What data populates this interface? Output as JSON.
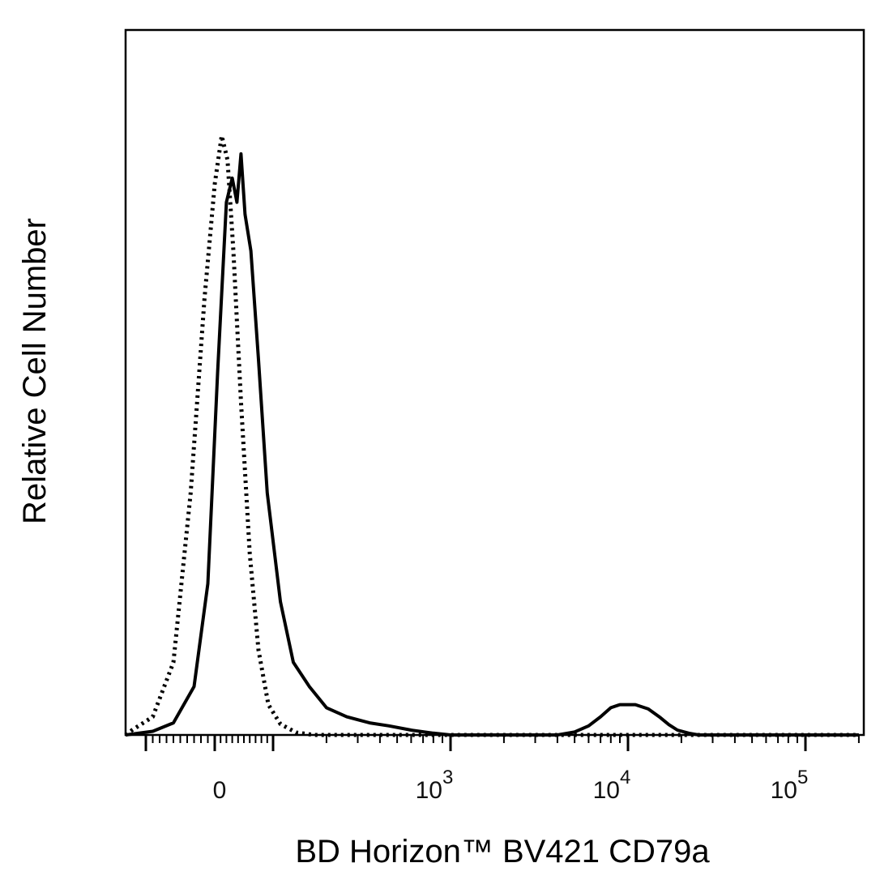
{
  "chart_data": {
    "type": "line",
    "xlabel": "BD Horizon™ BV421 CD79a",
    "ylabel": "Relative Cell Number",
    "x_scale": "biexponential",
    "x_tick_labels": [
      {
        "value": 0,
        "base": "0",
        "exp": ""
      },
      {
        "value": 1000,
        "base": "10",
        "exp": "3"
      },
      {
        "value": 10000,
        "base": "10",
        "exp": "4"
      },
      {
        "value": 100000,
        "base": "10",
        "exp": "5"
      }
    ],
    "xlim": [
      -300,
      250000
    ],
    "ylim": [
      0,
      100
    ],
    "grid": false,
    "series": [
      {
        "style": "solid",
        "color": "#000000",
        "points": [
          [
            -130,
            0
          ],
          [
            -90,
            0.6
          ],
          [
            -60,
            2
          ],
          [
            -30,
            8
          ],
          [
            -10,
            25
          ],
          [
            5,
            60
          ],
          [
            20,
            88
          ],
          [
            30,
            92
          ],
          [
            38,
            88
          ],
          [
            45,
            96
          ],
          [
            52,
            86
          ],
          [
            62,
            80
          ],
          [
            75,
            62
          ],
          [
            90,
            40
          ],
          [
            110,
            22
          ],
          [
            130,
            12
          ],
          [
            160,
            8
          ],
          [
            200,
            4.5
          ],
          [
            260,
            3
          ],
          [
            350,
            2
          ],
          [
            450,
            1.5
          ],
          [
            600,
            0.8
          ],
          [
            800,
            0.3
          ],
          [
            1000,
            0
          ],
          [
            4000,
            0
          ],
          [
            5000,
            0.5
          ],
          [
            6000,
            1.5
          ],
          [
            7000,
            3
          ],
          [
            8000,
            4.5
          ],
          [
            9000,
            5
          ],
          [
            11000,
            5
          ],
          [
            13000,
            4.3
          ],
          [
            15000,
            3
          ],
          [
            17000,
            1.7
          ],
          [
            19000,
            0.8
          ],
          [
            22000,
            0.3
          ],
          [
            25000,
            0
          ],
          [
            200000,
            0
          ]
        ]
      },
      {
        "style": "dotted",
        "color": "#000000",
        "points": [
          [
            -150,
            0
          ],
          [
            -120,
            0.8
          ],
          [
            -90,
            3
          ],
          [
            -60,
            12
          ],
          [
            -35,
            40
          ],
          [
            -15,
            72
          ],
          [
            0,
            91
          ],
          [
            12,
            99
          ],
          [
            22,
            95
          ],
          [
            32,
            80
          ],
          [
            45,
            55
          ],
          [
            60,
            30
          ],
          [
            75,
            14
          ],
          [
            92,
            5
          ],
          [
            110,
            1.8
          ],
          [
            135,
            0.4
          ],
          [
            170,
            0
          ],
          [
            200000,
            0
          ]
        ]
      }
    ]
  }
}
